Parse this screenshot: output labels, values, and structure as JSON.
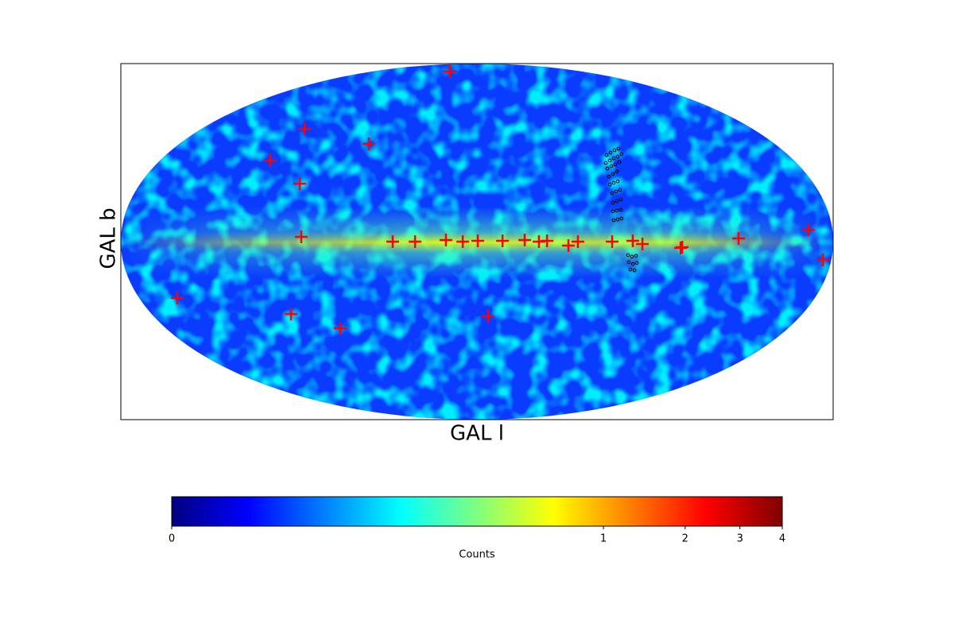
{
  "chart_data": {
    "type": "skymap",
    "xlabel": "GAL l",
    "ylabel": "GAL b",
    "xlim": [
      180,
      -180
    ],
    "ylim": [
      -90,
      90
    ],
    "colormap": "jet",
    "colorbar": {
      "label": "Counts",
      "clim": [
        0,
        4
      ],
      "scale": "pow",
      "exponent": 0.25,
      "ticks": [
        0,
        1,
        2,
        3,
        4
      ]
    },
    "series": [
      {
        "marker": "plus",
        "color": "#ff0000",
        "x": [
          13.7,
          87.2,
          54.6,
          104.5,
          89.6,
          88.8,
          42.6,
          31.3,
          15.7,
          7.2,
          -0.4,
          -12.9,
          -24.1,
          -31.3,
          -35.4,
          -46.2,
          -51,
          -68.3,
          -78.7,
          -83.6,
          -102.9,
          -103.7,
          -132.2,
          -167.5,
          -174.8,
          151.5,
          94,
          69.1,
          -5.6
        ],
        "values": [
          86,
          57,
          49.4,
          41,
          29.3,
          2.4,
          0,
          0,
          0.8,
          0,
          0.4,
          0.4,
          0.8,
          0,
          0.4,
          -2,
          0,
          0,
          0.4,
          -1.2,
          -3.2,
          -2.8,
          1.6,
          6,
          -9.2,
          -28.5,
          -36.6,
          -43.8,
          -37.8
        ]
      },
      {
        "marker": "circle",
        "color": "#000000",
        "x": [
          -65.5,
          -67.5,
          -69.5,
          -71.5,
          -65.1,
          -67.1,
          -69.1,
          -71.1,
          -73.1,
          -65.9,
          -67.9,
          -69.9,
          -71.9,
          -66.7,
          -68.7,
          -70.7,
          -67.1,
          -69.1,
          -71.1,
          -68.3,
          -70.3,
          -72.3,
          -68.7,
          -70.7,
          -72.7,
          -68.7,
          -70.7,
          -72.7,
          -69.1,
          -71.1,
          -73.1,
          -76.3,
          -78.3,
          -80.4,
          -76.7,
          -78.8,
          -80.8,
          -77.5,
          -79.6
        ],
        "values": [
          43.8,
          45,
          46.2,
          47,
          39.8,
          41,
          42.2,
          43,
          44.2,
          37,
          38.2,
          39,
          40.2,
          32.9,
          34.2,
          35.4,
          28.9,
          29.7,
          30.5,
          24.5,
          25.3,
          26.1,
          19.7,
          20.5,
          21.3,
          15.3,
          15.7,
          16.1,
          10.8,
          11.2,
          11.7,
          -6.8,
          -7.6,
          -7.2,
          -10.4,
          -11.3,
          -10.8,
          -14.1,
          -14.5
        ]
      }
    ]
  }
}
